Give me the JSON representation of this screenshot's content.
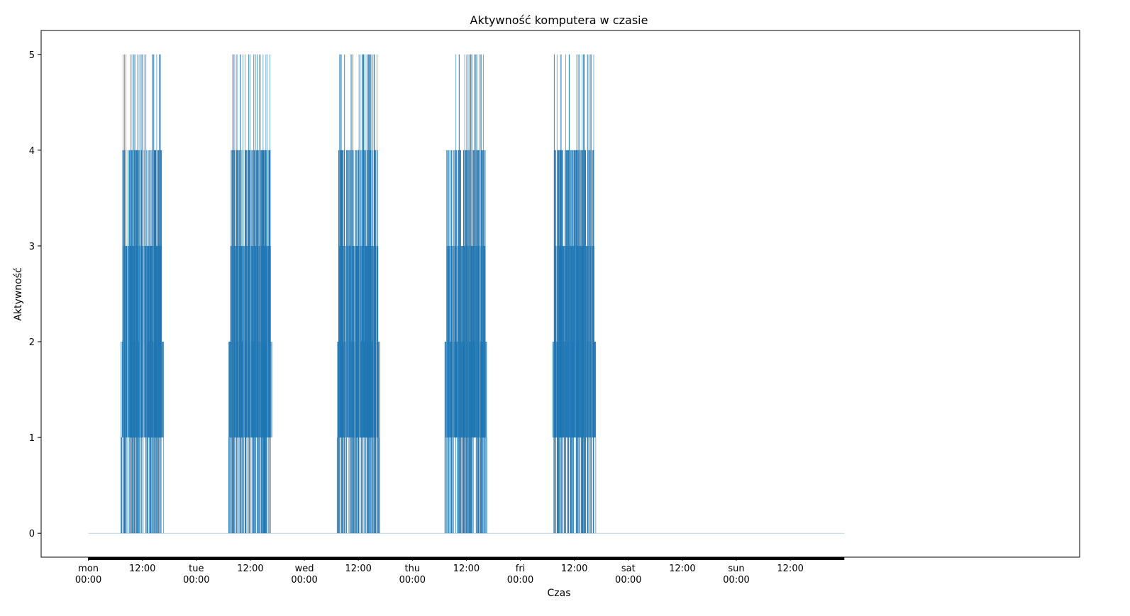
{
  "chart_data": {
    "type": "line",
    "title": "Aktywność komputera w czasie",
    "xlabel": "Czas",
    "ylabel": "Aktywność",
    "xlim_hours": [
      -10.5,
      220.3
    ],
    "ylim": [
      -0.25,
      5.25
    ],
    "yticks": [
      0,
      1,
      2,
      3,
      4,
      5
    ],
    "xticks": [
      {
        "hour": 0,
        "line1": "mon",
        "line2": "00:00"
      },
      {
        "hour": 12,
        "line1": "12:00",
        "line2": ""
      },
      {
        "hour": 24,
        "line1": "tue",
        "line2": "00:00"
      },
      {
        "hour": 36,
        "line1": "12:00",
        "line2": ""
      },
      {
        "hour": 48,
        "line1": "wed",
        "line2": "00:00"
      },
      {
        "hour": 60,
        "line1": "12:00",
        "line2": ""
      },
      {
        "hour": 72,
        "line1": "thu",
        "line2": "00:00"
      },
      {
        "hour": 84,
        "line1": "12:00",
        "line2": ""
      },
      {
        "hour": 96,
        "line1": "fri",
        "line2": "00:00"
      },
      {
        "hour": 108,
        "line1": "12:00",
        "line2": ""
      },
      {
        "hour": 120,
        "line1": "sat",
        "line2": "00:00"
      },
      {
        "hour": 132,
        "line1": "12:00",
        "line2": ""
      },
      {
        "hour": 144,
        "line1": "sun",
        "line2": "00:00"
      },
      {
        "hour": 156,
        "line1": "12:00",
        "line2": ""
      }
    ],
    "x_range_hours": [
      0,
      168
    ],
    "series": [
      {
        "color": "#1f77b4",
        "baseline": 0,
        "active_periods": [
          {
            "day": "mon",
            "start_hour": 7.2,
            "end_hour": 16.7,
            "max_value": 5
          },
          {
            "day": "tue",
            "start_hour": 31.2,
            "end_hour": 40.9,
            "max_value": 5
          },
          {
            "day": "wed",
            "start_hour": 55.2,
            "end_hour": 64.8,
            "max_value": 5
          },
          {
            "day": "thu",
            "start_hour": 79.2,
            "end_hour": 88.6,
            "max_value": 5
          },
          {
            "day": "fri",
            "start_hour": 103.1,
            "end_hour": 112.8,
            "max_value": 5
          }
        ]
      }
    ]
  }
}
